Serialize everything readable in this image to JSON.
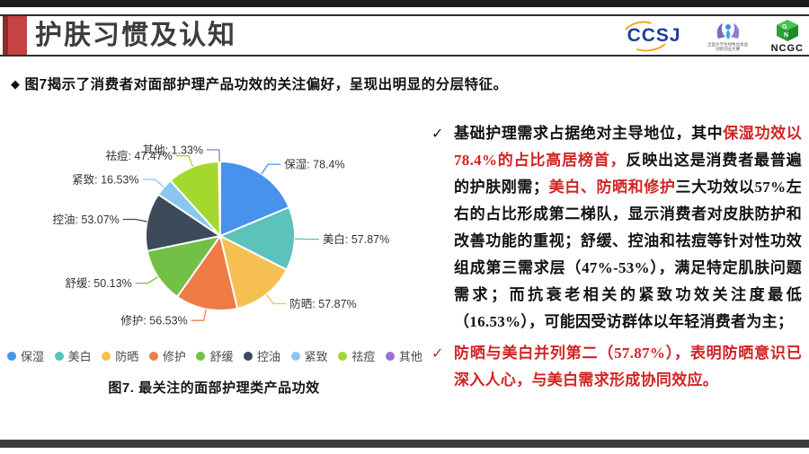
{
  "header": {
    "title": "护肤习惯及认知",
    "logos": {
      "ccsj": "CCSJ",
      "contest_line1": "全国大学生绿色化妆品",
      "contest_line2": "创新创业大赛",
      "ncgc": "NCGC"
    }
  },
  "intro_bullet": {
    "marker": "◆",
    "text": "图7揭示了消费者对面部护理产品功效的关注偏好，呈现出明显的分层特征。"
  },
  "chart_data": {
    "type": "pie",
    "title": "图7. 最关注的面部护理类产品功效",
    "label_format": "{name}: {value}%",
    "legend_position": "bottom",
    "start_angle": "top, clockwise",
    "categories": [
      "保湿",
      "美白",
      "防晒",
      "修护",
      "舒缓",
      "控油",
      "紧致",
      "祛痘",
      "其他"
    ],
    "values": [
      78.4,
      57.87,
      57.87,
      56.53,
      50.13,
      53.07,
      16.53,
      47.47,
      1.33
    ],
    "colors": [
      "#4692EC",
      "#5BC2BC",
      "#F5C051",
      "#EF7B45",
      "#72C045",
      "#3D4A59",
      "#89C7F0",
      "#A3D82E",
      "#9C6FD6"
    ]
  },
  "analysis": {
    "check_marker": "✓",
    "bullets": [
      {
        "marker_style": "dark",
        "segments": [
          {
            "t": "基础护理需求占据绝对主导地位，其中",
            "red": false
          },
          {
            "t": "保湿功效以78.4%的占比高居榜首，",
            "red": true
          },
          {
            "t": "反映出这是消费者最普遍的护肤刚需；",
            "red": false
          },
          {
            "t": "美白、防晒和修护",
            "red": true
          },
          {
            "t": "三大功效以57%左右的占比形成第二梯队，显示消费者对皮肤防护和改善功能的重视；舒缓、控油和祛痘等针对性功效组成第三需求层（47%-53%），满足特定肌肤问题需求；而抗衰老相关的紧致功效关注度最低（16.53%），可能因受访群体以年轻消费者为主；",
            "red": false
          }
        ]
      },
      {
        "marker_style": "red",
        "segments": [
          {
            "t": "防晒与美白并列第二（57.87%），表明防晒意识已深入人心，与美白需求形成协同效应。",
            "red": true
          }
        ]
      }
    ]
  },
  "colors": {
    "accent_red": "#C54343",
    "red_text": "#D12424",
    "title_gray": "#3D3D3D"
  }
}
